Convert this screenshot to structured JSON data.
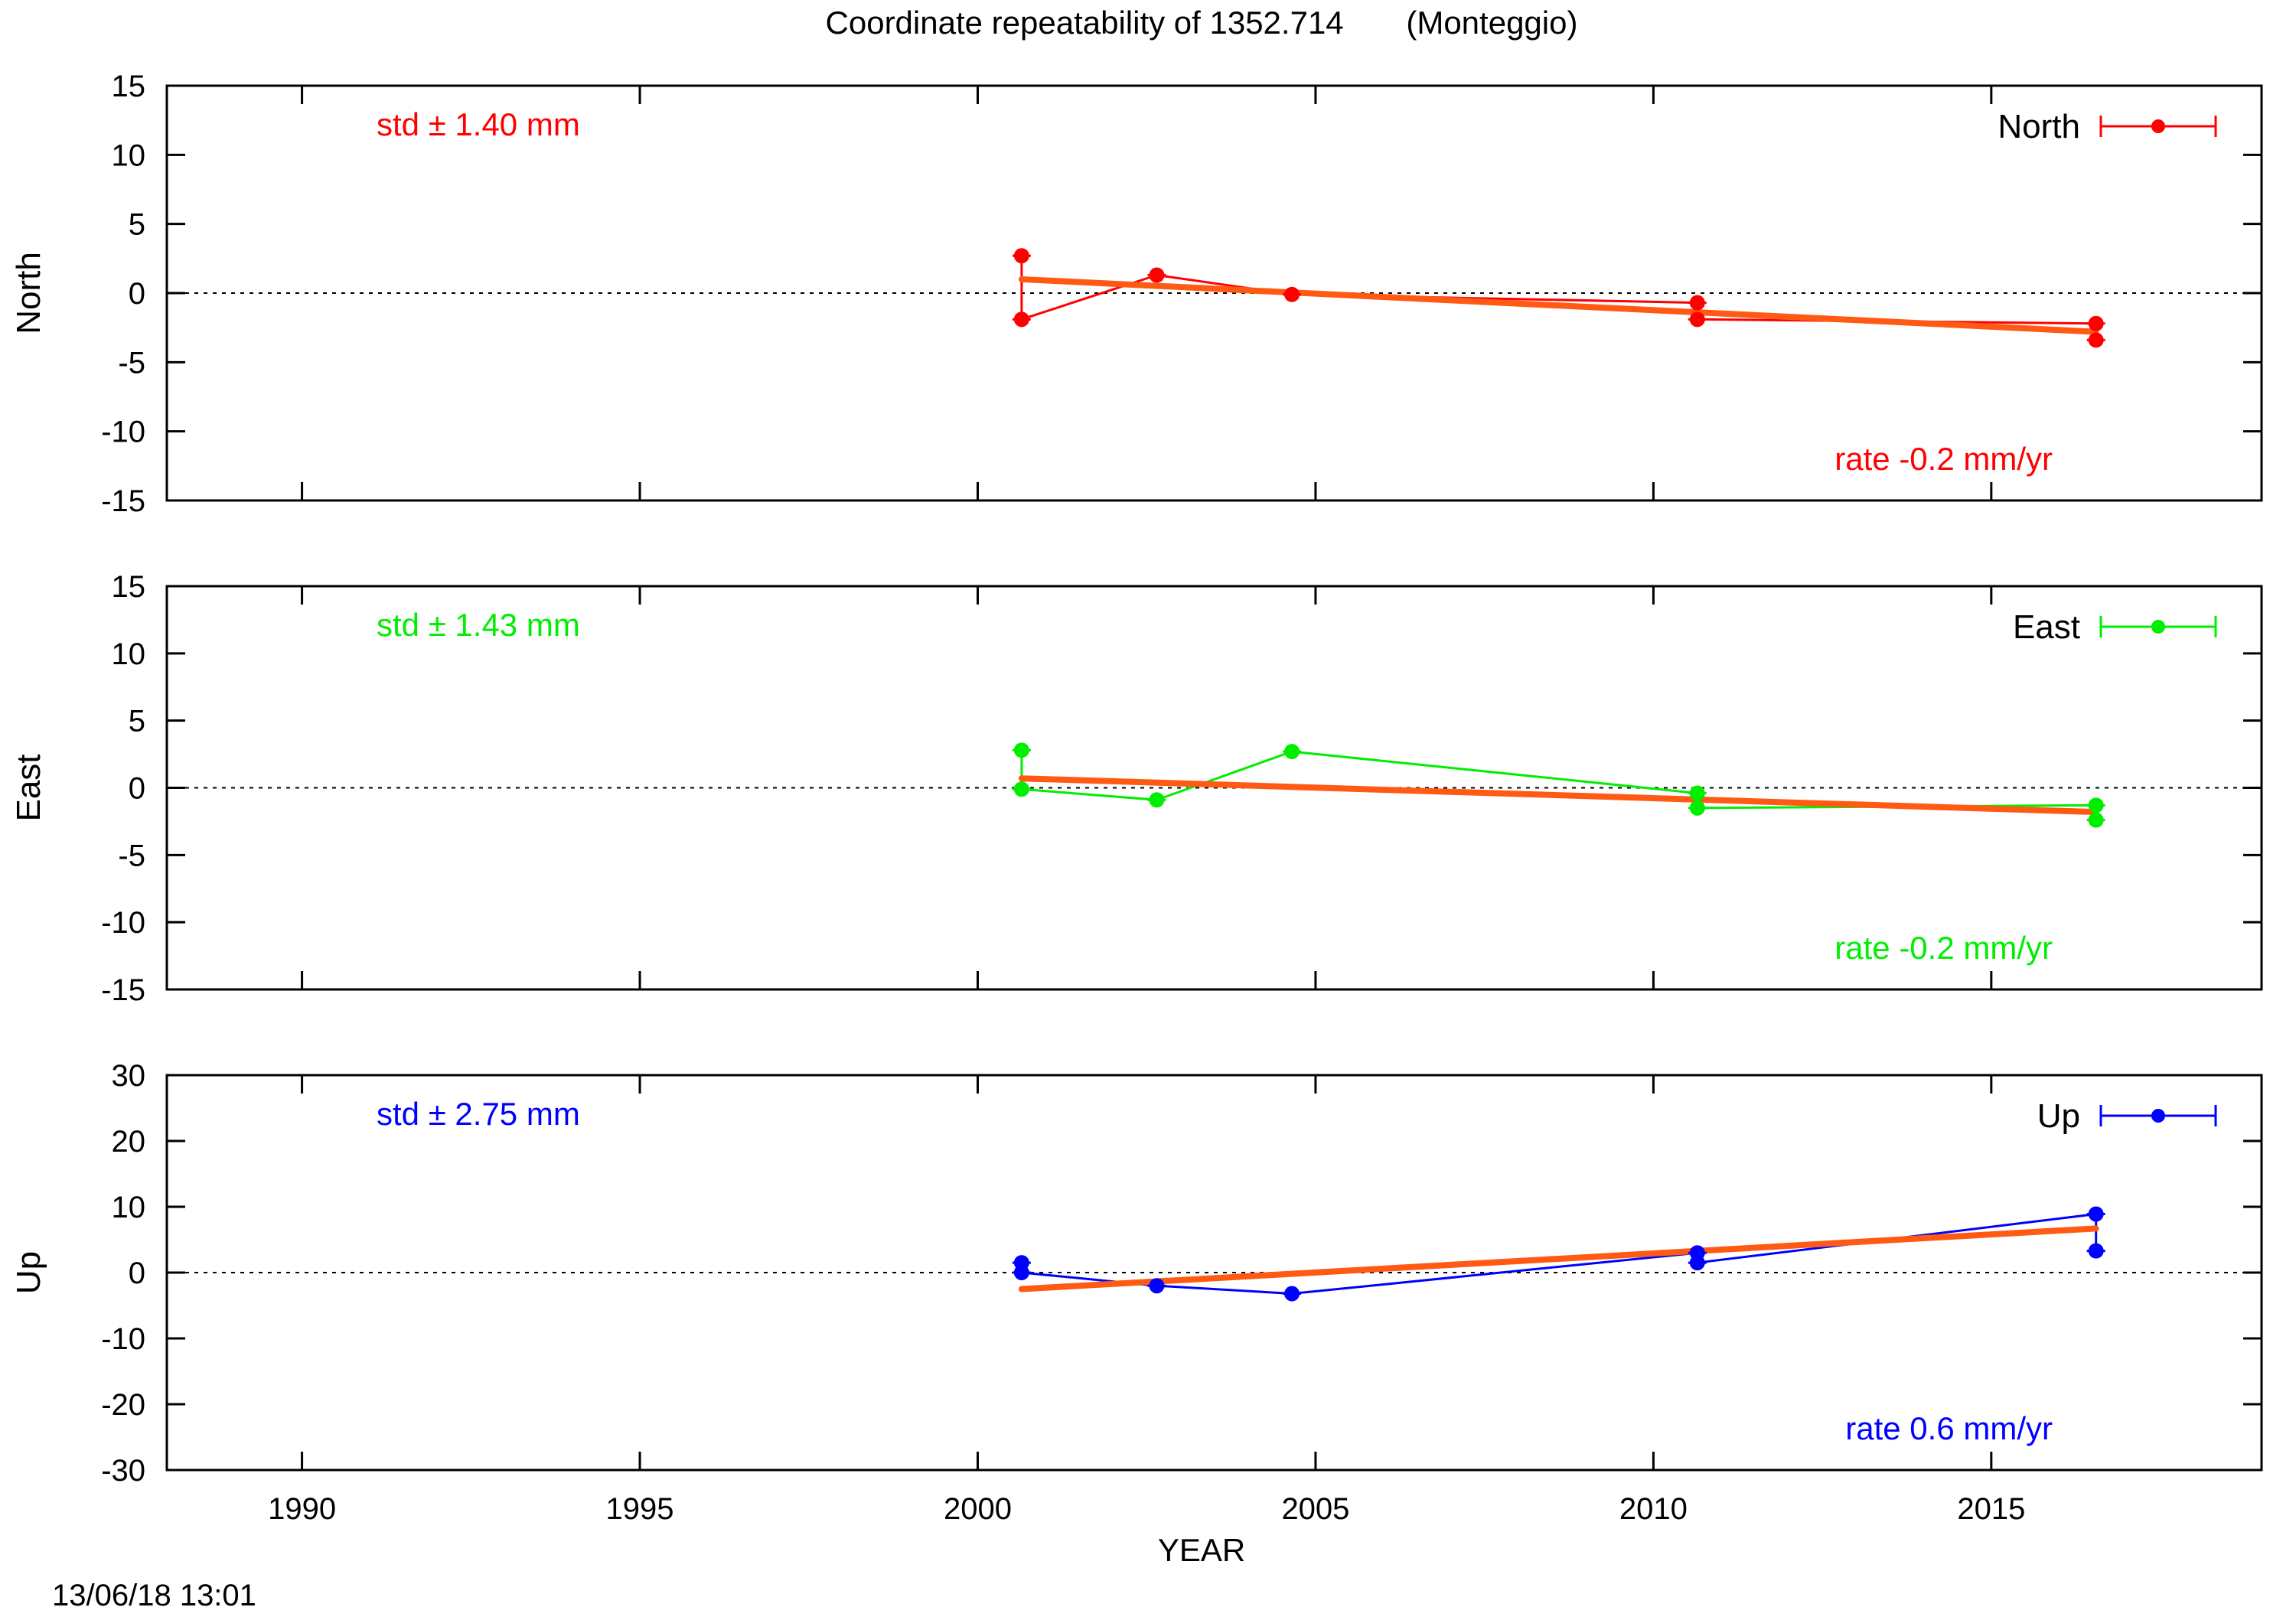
{
  "title": "Coordinate repeatability of 1352.714       (Monteggio)",
  "timestamp": "13/06/18 13:01",
  "xlabel": "YEAR",
  "xlim": [
    1988,
    2019
  ],
  "xticks": [
    1990,
    1995,
    2000,
    2005,
    2010,
    2015
  ],
  "chart_data": [
    {
      "type": "line",
      "ylabel": "North",
      "color": "#ff0000",
      "ylim": [
        -15,
        15
      ],
      "yticks": [
        15,
        10,
        5,
        0,
        -5,
        -10,
        -15
      ],
      "std_label": "std ± 1.40 mm",
      "rate_label": "rate -0.2 mm/yr",
      "series": [
        {
          "name": "North",
          "x": [
            2000.65,
            2000.65,
            2002.65,
            2004.65,
            2010.65,
            2010.65,
            2016.55,
            2016.55
          ],
          "y": [
            2.7,
            -1.9,
            1.3,
            -0.1,
            -0.7,
            -1.9,
            -2.2,
            -3.4
          ]
        }
      ],
      "trend": {
        "x": [
          2000.65,
          2016.55
        ],
        "y": [
          1.0,
          -2.8
        ]
      },
      "grid": false,
      "legend_position": "top-right"
    },
    {
      "type": "line",
      "ylabel": "East",
      "color": "#00ee00",
      "ylim": [
        -15,
        15
      ],
      "yticks": [
        15,
        10,
        5,
        0,
        -5,
        -10,
        -15
      ],
      "std_label": "std ± 1.43 mm",
      "rate_label": "rate -0.2 mm/yr",
      "series": [
        {
          "name": "East",
          "x": [
            2000.65,
            2000.65,
            2002.65,
            2004.65,
            2010.65,
            2010.65,
            2016.55,
            2016.55
          ],
          "y": [
            2.8,
            -0.1,
            -0.9,
            2.7,
            -0.4,
            -1.5,
            -1.3,
            -2.4
          ]
        }
      ],
      "trend": {
        "x": [
          2000.65,
          2016.55
        ],
        "y": [
          0.7,
          -1.8
        ]
      },
      "grid": false,
      "legend_position": "top-right"
    },
    {
      "type": "line",
      "ylabel": "Up",
      "color": "#0000ff",
      "ylim": [
        -30,
        30
      ],
      "yticks": [
        30,
        20,
        10,
        0,
        -10,
        -20,
        -30
      ],
      "std_label": "std ± 2.75 mm",
      "rate_label": "rate  0.6 mm/yr",
      "series": [
        {
          "name": "Up",
          "x": [
            2000.65,
            2000.65,
            2002.65,
            2004.65,
            2010.65,
            2010.65,
            2016.55,
            2016.55
          ],
          "y": [
            1.5,
            0.0,
            -2.0,
            -3.2,
            3.0,
            1.5,
            8.9,
            3.3
          ]
        }
      ],
      "trend": {
        "x": [
          2000.65,
          2016.55
        ],
        "y": [
          -2.5,
          6.7
        ]
      },
      "grid": false,
      "legend_position": "top-right"
    }
  ],
  "colors": {
    "trend": "#ff5a14",
    "axis": "#000000",
    "zero_line": "#000000"
  }
}
